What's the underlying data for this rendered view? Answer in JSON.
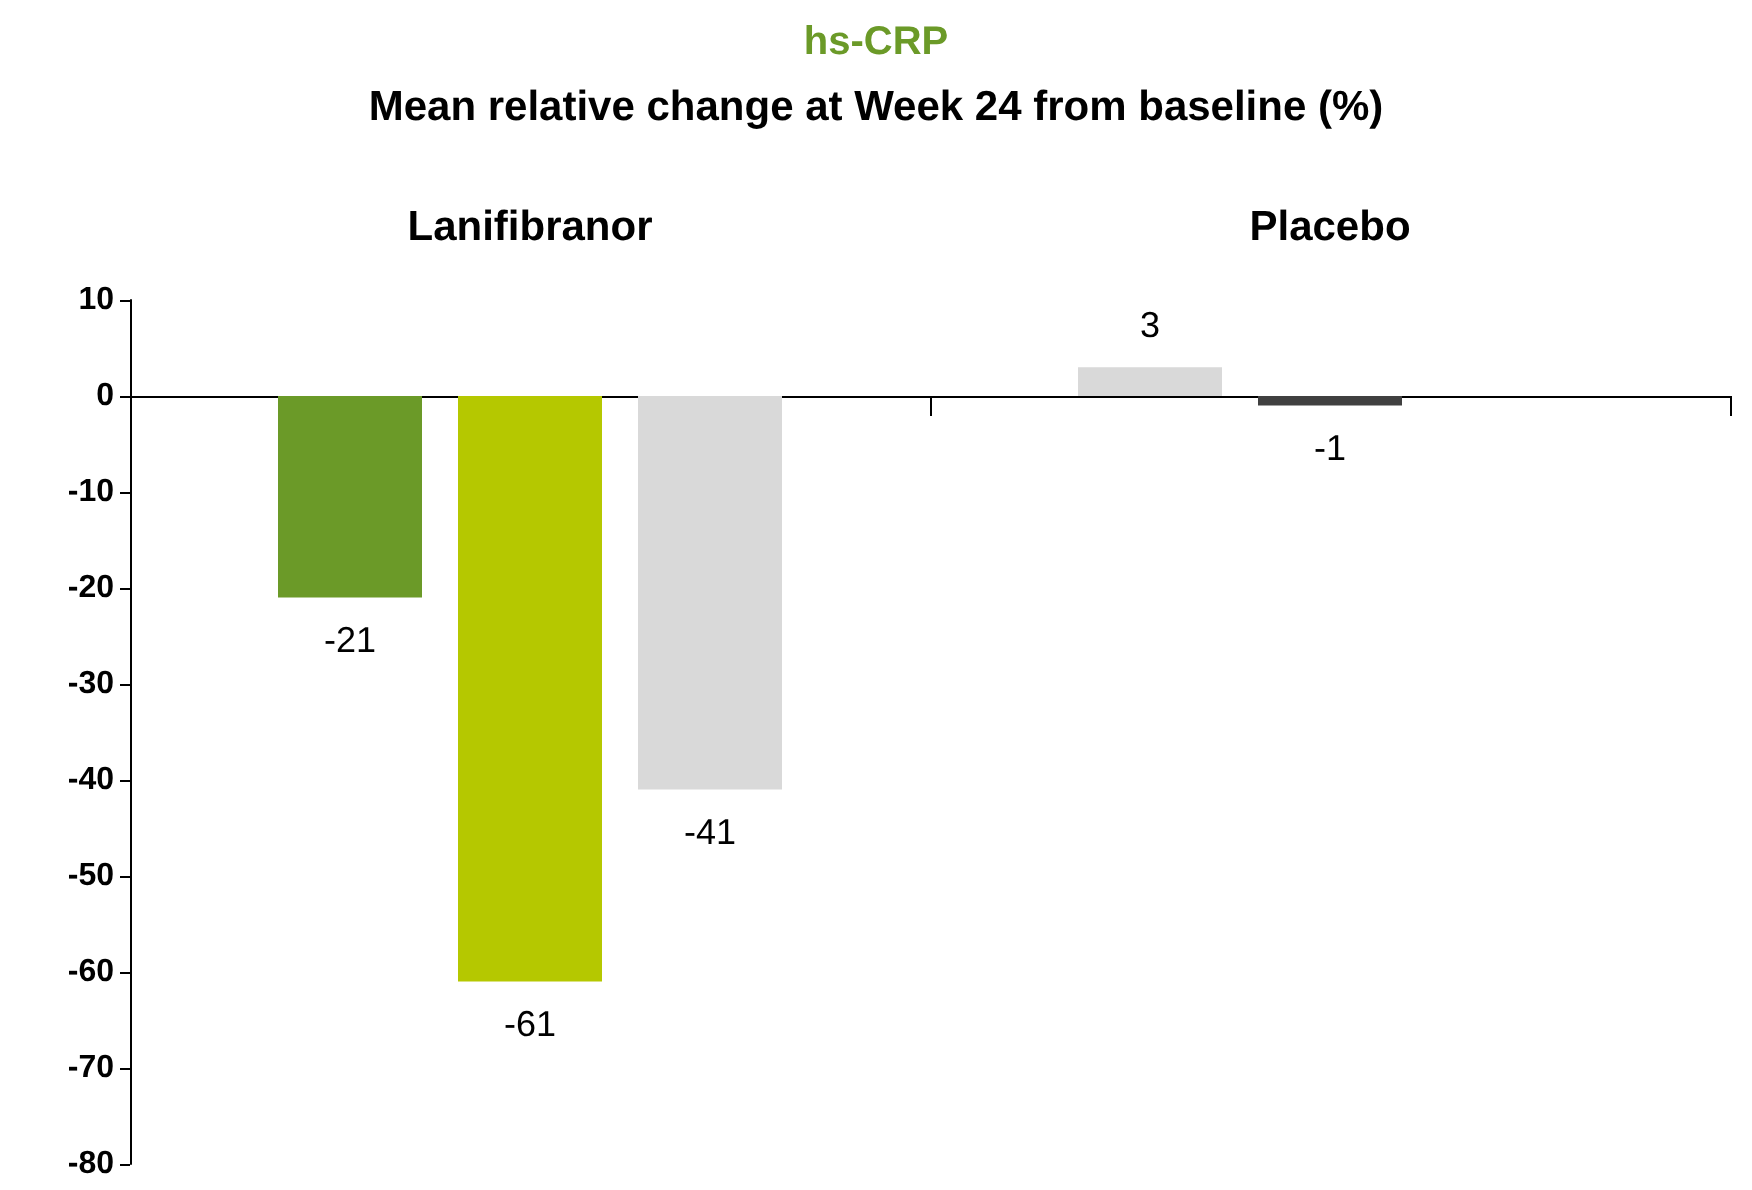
{
  "chart_data": {
    "type": "bar",
    "title": "hs-CRP",
    "subtitle": "Mean relative change at Week 24 from baseline (%)",
    "categories": [
      "Lanifibranor",
      "Placebo"
    ],
    "series": [
      {
        "values": [
          -21,
          3
        ],
        "colors": [
          "#6b9a28",
          "#d9d9d9"
        ]
      },
      {
        "values": [
          -61,
          -1
        ],
        "colors": [
          "#b5c800",
          "#404040"
        ]
      },
      {
        "values": [
          -41,
          null
        ],
        "colors": [
          "#d9d9d9",
          null
        ]
      }
    ],
    "ylim": [
      -80,
      10
    ],
    "yticks": [
      -80,
      -70,
      -60,
      -50,
      -40,
      -30,
      -20,
      -10,
      0,
      10
    ],
    "data_labels": true
  }
}
